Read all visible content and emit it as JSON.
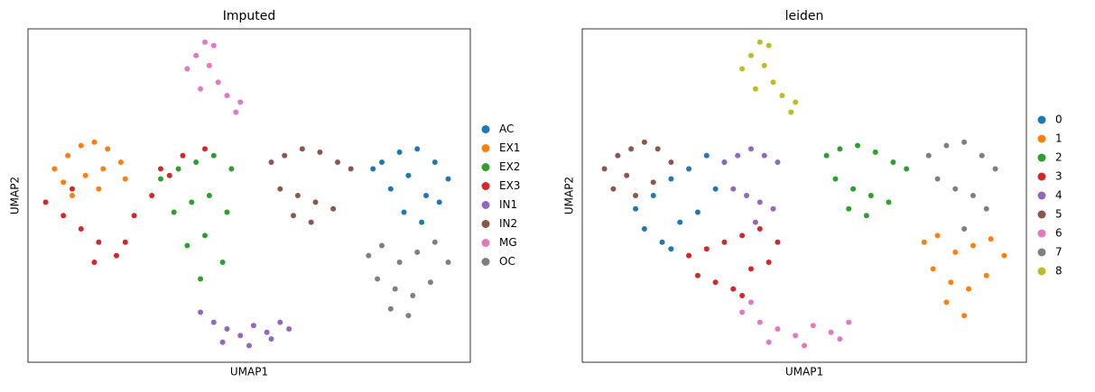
{
  "chart_data": [
    {
      "type": "scatter",
      "title": "Imputed",
      "xlabel": "UMAP1",
      "ylabel": "UMAP2",
      "xlim": [
        0,
        100
      ],
      "ylim": [
        0,
        100
      ],
      "legend": "right",
      "series": [
        {
          "name": "AC",
          "color": "#1f77b4",
          "x": [
            80,
            84,
            88,
            92,
            95,
            82,
            86,
            90,
            93,
            85,
            78,
            89
          ],
          "y": [
            60,
            63,
            64,
            60,
            55,
            52,
            56,
            50,
            48,
            45,
            58,
            42
          ]
        },
        {
          "name": "EX1",
          "color": "#ff7f0e",
          "x": [
            6,
            9,
            12,
            15,
            18,
            21,
            8,
            13,
            17,
            22,
            10,
            16
          ],
          "y": [
            58,
            62,
            65,
            66,
            64,
            60,
            54,
            56,
            58,
            55,
            50,
            52
          ]
        },
        {
          "name": "EX2",
          "color": "#2ca02c",
          "x": [
            30,
            34,
            38,
            42,
            46,
            33,
            37,
            41,
            45,
            36,
            40,
            44,
            39
          ],
          "y": [
            55,
            58,
            60,
            62,
            58,
            45,
            48,
            50,
            45,
            35,
            38,
            30,
            25
          ]
        },
        {
          "name": "EX3",
          "color": "#d62728",
          "x": [
            4,
            8,
            12,
            16,
            20,
            24,
            28,
            32,
            10,
            15,
            22,
            30,
            35,
            40
          ],
          "y": [
            48,
            44,
            40,
            36,
            32,
            44,
            50,
            56,
            52,
            30,
            36,
            58,
            62,
            64
          ]
        },
        {
          "name": "IN1",
          "color": "#9467bd",
          "x": [
            39,
            42,
            45,
            48,
            51,
            54,
            57,
            44,
            50,
            55,
            59
          ],
          "y": [
            15,
            12,
            10,
            8,
            11,
            9,
            12,
            6,
            5,
            7,
            10
          ]
        },
        {
          "name": "IN2",
          "color": "#8c564b",
          "x": [
            55,
            58,
            62,
            66,
            70,
            73,
            57,
            61,
            65,
            69,
            64,
            60
          ],
          "y": [
            60,
            62,
            64,
            63,
            60,
            58,
            52,
            50,
            48,
            46,
            42,
            44
          ]
        },
        {
          "name": "MG",
          "color": "#e377c2",
          "x": [
            36,
            38,
            40,
            42,
            39,
            43,
            45,
            48,
            47,
            41
          ],
          "y": [
            88,
            92,
            96,
            95,
            82,
            84,
            80,
            78,
            75,
            89
          ]
        },
        {
          "name": "OC",
          "color": "#7f7f7f",
          "x": [
            77,
            80,
            84,
            88,
            92,
            95,
            79,
            83,
            87,
            91,
            86,
            82
          ],
          "y": [
            32,
            35,
            30,
            33,
            36,
            30,
            25,
            22,
            20,
            24,
            14,
            16
          ]
        }
      ]
    },
    {
      "type": "scatter",
      "title": "leiden",
      "xlabel": "UMAP1",
      "ylabel": "UMAP2",
      "xlim": [
        0,
        100
      ],
      "ylim": [
        0,
        100
      ],
      "legend": "right",
      "series": [
        {
          "name": "0",
          "color": "#1f77b4",
          "x": [
            12,
            16,
            20,
            24,
            28,
            32,
            14,
            18,
            22,
            26,
            30,
            20
          ],
          "y": [
            46,
            50,
            55,
            58,
            62,
            60,
            40,
            36,
            42,
            45,
            52,
            34
          ]
        },
        {
          "name": "1",
          "color": "#ff7f0e",
          "x": [
            77,
            80,
            84,
            88,
            92,
            95,
            79,
            83,
            87,
            91,
            86,
            82
          ],
          "y": [
            36,
            38,
            33,
            35,
            37,
            32,
            28,
            24,
            22,
            26,
            14,
            18
          ]
        },
        {
          "name": "2",
          "color": "#2ca02c",
          "x": [
            55,
            58,
            62,
            66,
            70,
            73,
            57,
            61,
            65,
            69,
            64,
            60
          ],
          "y": [
            62,
            64,
            65,
            63,
            60,
            58,
            55,
            52,
            50,
            48,
            44,
            46
          ]
        },
        {
          "name": "3",
          "color": "#d62728",
          "x": [
            24,
            28,
            32,
            36,
            40,
            44,
            26,
            30,
            34,
            38,
            42,
            36
          ],
          "y": [
            32,
            34,
            36,
            38,
            40,
            36,
            26,
            24,
            22,
            28,
            30,
            20
          ]
        },
        {
          "name": "4",
          "color": "#9467bd",
          "x": [
            32,
            35,
            38,
            41,
            44,
            34,
            37,
            40,
            43,
            39
          ],
          "y": [
            60,
            62,
            64,
            62,
            60,
            52,
            50,
            48,
            46,
            42
          ]
        },
        {
          "name": "5",
          "color": "#8c564b",
          "x": [
            5,
            8,
            11,
            14,
            17,
            20,
            7,
            12,
            16,
            10
          ],
          "y": [
            58,
            62,
            64,
            66,
            64,
            60,
            52,
            50,
            54,
            56
          ]
        },
        {
          "name": "6",
          "color": "#e377c2",
          "x": [
            36,
            40,
            44,
            48,
            52,
            56,
            60,
            42,
            50,
            58,
            38
          ],
          "y": [
            15,
            12,
            10,
            8,
            11,
            9,
            12,
            6,
            5,
            7,
            18
          ]
        },
        {
          "name": "7",
          "color": "#7f7f7f",
          "x": [
            78,
            82,
            86,
            90,
            93,
            80,
            84,
            88,
            91,
            86
          ],
          "y": [
            62,
            65,
            66,
            62,
            58,
            55,
            52,
            50,
            46,
            40
          ]
        },
        {
          "name": "8",
          "color": "#bcbd22",
          "x": [
            36,
            38,
            40,
            42,
            39,
            43,
            45,
            48,
            47,
            41
          ],
          "y": [
            88,
            92,
            96,
            95,
            82,
            84,
            80,
            78,
            75,
            89
          ]
        }
      ]
    }
  ]
}
